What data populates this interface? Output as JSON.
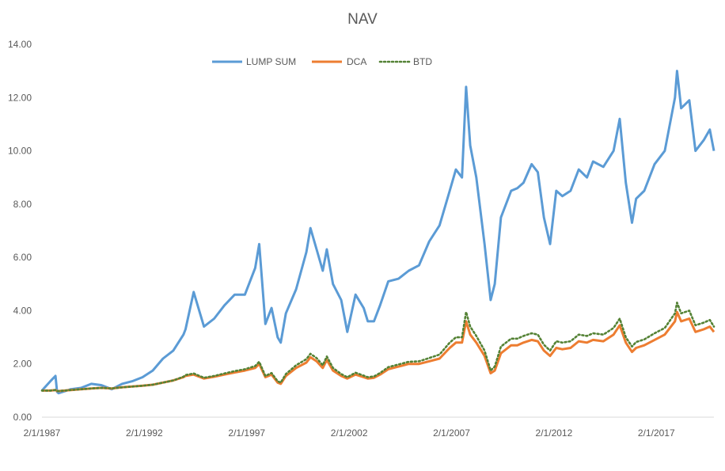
{
  "chart_data": {
    "type": "line",
    "title": "NAV",
    "xlabel": "",
    "ylabel": "",
    "ylim": [
      0,
      14
    ],
    "y_ticks": [
      "0.00",
      "2.00",
      "4.00",
      "6.00",
      "8.00",
      "10.00",
      "12.00",
      "14.00"
    ],
    "x_ticks": [
      "2/1/1987",
      "2/1/1992",
      "2/1/1997",
      "2/1/2002",
      "2/1/2007",
      "2/1/2012",
      "2/1/2017"
    ],
    "x_tick_years": [
      1987.09,
      1992.09,
      1997.09,
      2002.09,
      2007.09,
      2012.09,
      2017.09
    ],
    "xlim": [
      1987.09,
      2019.9
    ],
    "grid": false,
    "legend_position": "top",
    "colors": {
      "LUMP SUM": "#5B9BD5",
      "DCA": "#ED7D31",
      "BTD": "#548235",
      "text": "#595959",
      "axis": "#D9D9D9"
    },
    "x": [
      1987.09,
      1987.5,
      1987.75,
      1987.83,
      1987.9,
      1988.5,
      1989.0,
      1989.5,
      1990.0,
      1990.5,
      1991.0,
      1991.5,
      1992.0,
      1992.5,
      1993.0,
      1993.5,
      1994.0,
      1994.1,
      1994.5,
      1995.0,
      1995.5,
      1996.0,
      1996.5,
      1997.0,
      1997.5,
      1997.7,
      1998.0,
      1998.3,
      1998.6,
      1998.75,
      1999.0,
      1999.5,
      2000.0,
      2000.2,
      2000.5,
      2000.8,
      2001.0,
      2001.3,
      2001.7,
      2002.0,
      2002.4,
      2002.8,
      2003.0,
      2003.3,
      2003.6,
      2004.0,
      2004.5,
      2005.0,
      2005.5,
      2006.0,
      2006.5,
      2007.0,
      2007.3,
      2007.6,
      2007.8,
      2008.0,
      2008.3,
      2008.7,
      2009.0,
      2009.2,
      2009.5,
      2010.0,
      2010.3,
      2010.6,
      2011.0,
      2011.3,
      2011.6,
      2011.9,
      2012.2,
      2012.5,
      2012.9,
      2013.3,
      2013.7,
      2014.0,
      2014.5,
      2015.0,
      2015.3,
      2015.6,
      2015.9,
      2016.1,
      2016.5,
      2017.0,
      2017.5,
      2018.0,
      2018.1,
      2018.3,
      2018.7,
      2019.0,
      2019.4,
      2019.7,
      2019.9
    ],
    "series": [
      {
        "name": "LUMP SUM",
        "values": [
          1.0,
          1.35,
          1.55,
          0.95,
          0.9,
          1.05,
          1.1,
          1.25,
          1.2,
          1.05,
          1.25,
          1.35,
          1.5,
          1.75,
          2.2,
          2.5,
          3.1,
          3.3,
          4.7,
          3.4,
          3.7,
          4.2,
          4.6,
          4.6,
          5.6,
          6.5,
          3.5,
          4.1,
          3.0,
          2.8,
          3.9,
          4.8,
          6.2,
          7.1,
          6.3,
          5.5,
          6.3,
          5.0,
          4.4,
          3.2,
          4.6,
          4.1,
          3.6,
          3.6,
          4.2,
          5.1,
          5.2,
          5.5,
          5.7,
          6.6,
          7.2,
          8.5,
          9.3,
          9.0,
          12.4,
          10.2,
          9.0,
          6.5,
          4.4,
          5.0,
          7.5,
          8.5,
          8.6,
          8.8,
          9.5,
          9.2,
          7.5,
          6.5,
          8.5,
          8.3,
          8.5,
          9.3,
          9.0,
          9.6,
          9.4,
          10.0,
          11.2,
          8.8,
          7.3,
          8.2,
          8.5,
          9.5,
          10.0,
          12.0,
          13.0,
          11.6,
          11.9,
          10.0,
          10.4,
          10.8,
          10.0
        ]
      },
      {
        "name": "DCA",
        "values": [
          1.0,
          1.0,
          1.02,
          0.98,
          0.98,
          1.02,
          1.05,
          1.08,
          1.1,
          1.08,
          1.12,
          1.15,
          1.18,
          1.22,
          1.3,
          1.38,
          1.5,
          1.55,
          1.6,
          1.45,
          1.52,
          1.6,
          1.68,
          1.75,
          1.85,
          2.0,
          1.5,
          1.6,
          1.3,
          1.25,
          1.55,
          1.85,
          2.05,
          2.25,
          2.1,
          1.85,
          2.15,
          1.75,
          1.55,
          1.45,
          1.6,
          1.5,
          1.45,
          1.48,
          1.6,
          1.8,
          1.9,
          2.0,
          2.0,
          2.1,
          2.2,
          2.6,
          2.8,
          2.8,
          3.6,
          3.1,
          2.8,
          2.3,
          1.65,
          1.75,
          2.4,
          2.7,
          2.7,
          2.8,
          2.9,
          2.85,
          2.5,
          2.3,
          2.6,
          2.55,
          2.6,
          2.85,
          2.8,
          2.9,
          2.85,
          3.1,
          3.45,
          2.8,
          2.45,
          2.6,
          2.7,
          2.9,
          3.1,
          3.6,
          3.95,
          3.6,
          3.7,
          3.2,
          3.3,
          3.4,
          3.2
        ]
      },
      {
        "name": "BTD",
        "values": [
          1.0,
          1.0,
          1.02,
          0.98,
          0.98,
          1.02,
          1.05,
          1.08,
          1.1,
          1.08,
          1.12,
          1.15,
          1.18,
          1.22,
          1.3,
          1.38,
          1.52,
          1.58,
          1.64,
          1.48,
          1.55,
          1.64,
          1.73,
          1.8,
          1.92,
          2.08,
          1.55,
          1.66,
          1.35,
          1.3,
          1.62,
          1.95,
          2.18,
          2.38,
          2.22,
          1.95,
          2.28,
          1.85,
          1.62,
          1.5,
          1.67,
          1.56,
          1.5,
          1.53,
          1.66,
          1.88,
          1.98,
          2.08,
          2.1,
          2.22,
          2.35,
          2.8,
          3.0,
          3.0,
          3.95,
          3.4,
          3.05,
          2.5,
          1.75,
          1.9,
          2.65,
          2.95,
          2.95,
          3.05,
          3.15,
          3.1,
          2.72,
          2.5,
          2.85,
          2.8,
          2.85,
          3.1,
          3.05,
          3.15,
          3.1,
          3.35,
          3.7,
          3.0,
          2.65,
          2.82,
          2.92,
          3.15,
          3.35,
          3.9,
          4.3,
          3.9,
          4.0,
          3.45,
          3.55,
          3.65,
          3.4
        ]
      }
    ]
  }
}
